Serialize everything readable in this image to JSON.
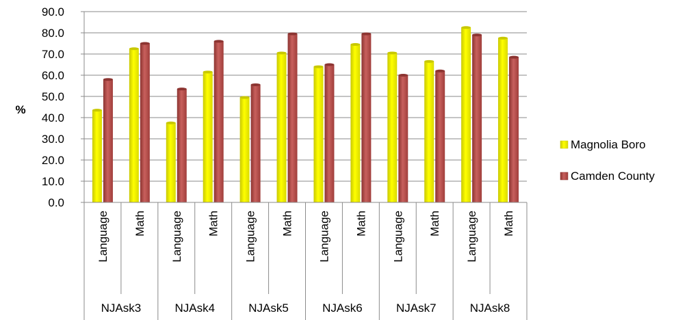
{
  "chart_data": {
    "type": "bar",
    "ylabel": "%",
    "ylim": [
      0,
      90
    ],
    "ytick_step": 10,
    "ytick_labels": [
      "0.0",
      "10.0",
      "20.0",
      "30.0",
      "40.0",
      "50.0",
      "60.0",
      "70.0",
      "80.0",
      "90.0"
    ],
    "grid": true,
    "legend_position": "right",
    "groups": [
      {
        "name": "NJAsk3",
        "categories": [
          "Language",
          "Math"
        ]
      },
      {
        "name": "NJAsk4",
        "categories": [
          "Language",
          "Math"
        ]
      },
      {
        "name": "NJAsk5",
        "categories": [
          "Language",
          "Math"
        ]
      },
      {
        "name": "NJAsk6",
        "categories": [
          "Language",
          "Math"
        ]
      },
      {
        "name": "NJAsk7",
        "categories": [
          "Language",
          "Math"
        ]
      },
      {
        "name": "NJAsk8",
        "categories": [
          "Language",
          "Math"
        ]
      }
    ],
    "series": [
      {
        "name": "Magnolia Boro",
        "color": "#ffff00",
        "dark": "#c8c800",
        "values": [
          43.5,
          72.5,
          37.5,
          61.5,
          49.5,
          70.5,
          64.0,
          74.5,
          70.5,
          66.5,
          82.5,
          77.5
        ]
      },
      {
        "name": "Camden County",
        "color": "#c0504d",
        "dark": "#8c3431",
        "values": [
          58.0,
          75.0,
          53.5,
          76.0,
          55.5,
          79.5,
          65.0,
          79.5,
          60.0,
          62.0,
          79.0,
          68.5
        ]
      }
    ]
  }
}
